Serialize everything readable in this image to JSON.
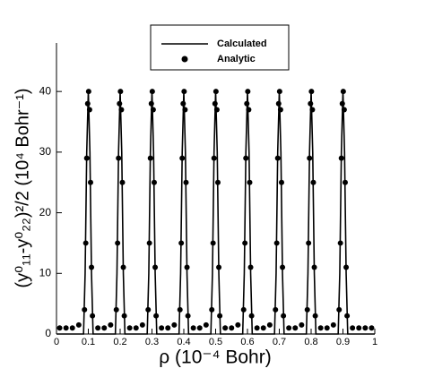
{
  "chart_data": {
    "type": "line-scatter",
    "xlabel": "ρ (10⁻⁴ Bohr)",
    "ylabel": "(y⁰₁₁-y⁰₂₂)²/2 (10⁴ Bohr⁻¹)",
    "xlim": [
      0,
      1
    ],
    "ylim": [
      0,
      48
    ],
    "xticks": [
      0,
      0.1,
      0.2,
      0.3,
      0.4,
      0.5,
      0.6,
      0.7,
      0.8,
      0.9,
      1
    ],
    "yticks": [
      0,
      10,
      20,
      30,
      40
    ],
    "series": [
      {
        "name": "Calculated",
        "color": "#000000",
        "style": "line",
        "x": [
          0,
          0.085,
          0.09,
          0.095,
          0.1,
          0.105,
          0.11,
          0.115,
          0.185,
          0.19,
          0.195,
          0.2,
          0.205,
          0.21,
          0.215,
          0.285,
          0.29,
          0.295,
          0.3,
          0.305,
          0.31,
          0.315,
          0.385,
          0.39,
          0.395,
          0.4,
          0.405,
          0.41,
          0.415,
          0.485,
          0.49,
          0.495,
          0.5,
          0.505,
          0.51,
          0.515,
          0.585,
          0.59,
          0.595,
          0.6,
          0.605,
          0.61,
          0.615,
          0.685,
          0.69,
          0.695,
          0.7,
          0.705,
          0.71,
          0.715,
          0.785,
          0.79,
          0.795,
          0.8,
          0.805,
          0.81,
          0.815,
          0.885,
          0.89,
          0.895,
          0.9,
          0.905,
          0.91,
          0.915,
          1
        ],
        "values": [
          0,
          0,
          10,
          30,
          40,
          30,
          10,
          0,
          0,
          10,
          30,
          40,
          30,
          10,
          0,
          0,
          10,
          30,
          40,
          30,
          10,
          0,
          0,
          10,
          30,
          40,
          30,
          10,
          0,
          0,
          10,
          30,
          40,
          30,
          10,
          0,
          0,
          10,
          30,
          40,
          30,
          10,
          0,
          0,
          10,
          30,
          40,
          30,
          10,
          0,
          0,
          10,
          30,
          40,
          30,
          10,
          0,
          0,
          10,
          30,
          40,
          30,
          10,
          0,
          0
        ]
      },
      {
        "name": "Analytic",
        "color": "#000000",
        "style": "marker",
        "x": [
          0.01,
          0.03,
          0.05,
          0.07,
          0.088,
          0.092,
          0.095,
          0.098,
          0.101,
          0.104,
          0.107,
          0.11,
          0.113,
          0.13,
          0.15,
          0.17,
          0.188,
          0.192,
          0.195,
          0.198,
          0.201,
          0.204,
          0.207,
          0.21,
          0.213,
          0.23,
          0.25,
          0.27,
          0.288,
          0.292,
          0.295,
          0.298,
          0.301,
          0.304,
          0.307,
          0.31,
          0.313,
          0.33,
          0.35,
          0.37,
          0.388,
          0.392,
          0.395,
          0.398,
          0.401,
          0.404,
          0.407,
          0.41,
          0.413,
          0.43,
          0.45,
          0.47,
          0.488,
          0.492,
          0.495,
          0.498,
          0.501,
          0.504,
          0.507,
          0.51,
          0.513,
          0.53,
          0.55,
          0.57,
          0.588,
          0.592,
          0.595,
          0.598,
          0.601,
          0.604,
          0.607,
          0.61,
          0.613,
          0.63,
          0.65,
          0.67,
          0.688,
          0.692,
          0.695,
          0.698,
          0.701,
          0.704,
          0.707,
          0.71,
          0.713,
          0.73,
          0.75,
          0.77,
          0.788,
          0.792,
          0.795,
          0.798,
          0.801,
          0.804,
          0.807,
          0.81,
          0.813,
          0.83,
          0.85,
          0.87,
          0.888,
          0.892,
          0.895,
          0.898,
          0.901,
          0.904,
          0.907,
          0.91,
          0.913,
          0.93,
          0.95,
          0.97,
          0.99
        ],
        "values": [
          1,
          1,
          1,
          1.5,
          4,
          15,
          29,
          38,
          40,
          37,
          25,
          11,
          3,
          1,
          1,
          1.5,
          4,
          15,
          29,
          38,
          40,
          37,
          25,
          11,
          3,
          1,
          1,
          1.5,
          4,
          15,
          29,
          38,
          40,
          37,
          25,
          11,
          3,
          1,
          1,
          1.5,
          4,
          15,
          29,
          38,
          40,
          37,
          25,
          11,
          3,
          1,
          1,
          1.5,
          4,
          15,
          29,
          38,
          40,
          37,
          25,
          11,
          3,
          1,
          1,
          1.5,
          4,
          15,
          29,
          38,
          40,
          37,
          25,
          11,
          3,
          1,
          1,
          1.5,
          4,
          15,
          29,
          38,
          40,
          37,
          25,
          11,
          3,
          1,
          1,
          1.5,
          4,
          15,
          29,
          38,
          40,
          37,
          25,
          11,
          3,
          1,
          1,
          1.5,
          4,
          15,
          29,
          38,
          40,
          37,
          25,
          11,
          3,
          1,
          1,
          1,
          1
        ]
      }
    ]
  }
}
